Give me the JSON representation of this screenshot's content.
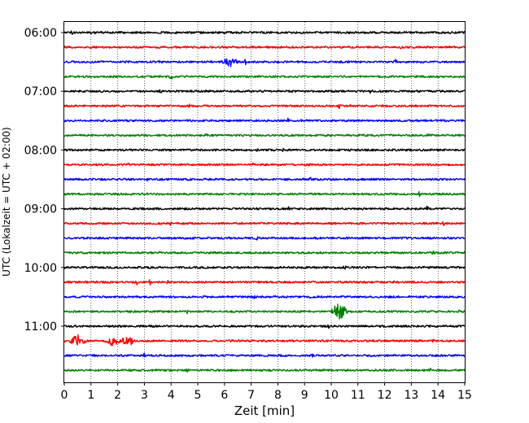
{
  "chart_data": {
    "type": "line",
    "title": "",
    "xlabel": "Zeit  [min]",
    "ylabel": "UTC (Lokalzeit = UTC + 02:00)",
    "xlim": [
      0,
      15
    ],
    "xticks": [
      0,
      1,
      2,
      3,
      4,
      5,
      6,
      7,
      8,
      9,
      10,
      11,
      12,
      13,
      14,
      15
    ],
    "xtick_labels": [
      "0",
      "1",
      "2",
      "3",
      "4",
      "5",
      "6",
      "7",
      "8",
      "9",
      "10",
      "11",
      "12",
      "13",
      "14",
      "15"
    ],
    "ytick_labels": [
      "06:00",
      "07:00",
      "08:00",
      "09:00",
      "10:00",
      "11:00"
    ],
    "ytick_trace_index": [
      0,
      4,
      8,
      12,
      16,
      20
    ],
    "grid": "vertical dotted lines at each minute",
    "trace_colors": [
      "#000000",
      "#ff0000",
      "#0000ff",
      "#008000"
    ],
    "traces": [
      {
        "start": "06:00",
        "events": [
          [
            0.3,
            1.0
          ],
          [
            4.2,
            1.0
          ]
        ]
      },
      {
        "start": "06:15",
        "events": [
          [
            8.3,
            0.5
          ],
          [
            12.6,
            0.6
          ]
        ]
      },
      {
        "start": "06:30",
        "events": [
          [
            6.2,
            1.6
          ],
          [
            6.8,
            1.2
          ],
          [
            12.4,
            0.8
          ]
        ]
      },
      {
        "start": "06:45",
        "events": [
          [
            4.0,
            1.1
          ]
        ]
      },
      {
        "start": "07:00",
        "events": [
          [
            3.6,
            0.5
          ],
          [
            11.5,
            1.1
          ]
        ]
      },
      {
        "start": "07:15",
        "events": [
          [
            4.7,
            0.5
          ],
          [
            10.3,
            0.8
          ],
          [
            10.7,
            0.6
          ]
        ]
      },
      {
        "start": "07:30",
        "events": [
          [
            8.4,
            0.9
          ]
        ]
      },
      {
        "start": "07:45",
        "events": [
          [
            5.3,
            0.5
          ],
          [
            13.6,
            0.8
          ]
        ]
      },
      {
        "start": "08:00",
        "events": [
          [
            7.2,
            0.5
          ],
          [
            8.2,
            0.6
          ],
          [
            11.3,
            0.6
          ]
        ]
      },
      {
        "start": "08:15",
        "events": [
          [
            2.4,
            0.4
          ],
          [
            7.1,
            0.5
          ]
        ]
      },
      {
        "start": "08:30",
        "events": [
          [
            3.1,
            0.5
          ],
          [
            9.2,
            0.7
          ]
        ]
      },
      {
        "start": "08:45",
        "events": [
          [
            3.1,
            0.6
          ],
          [
            13.3,
            0.8
          ]
        ]
      },
      {
        "start": "09:00",
        "events": [
          [
            8.4,
            0.6
          ],
          [
            13.6,
            1.3
          ]
        ]
      },
      {
        "start": "09:15",
        "events": [
          [
            4.0,
            0.7
          ],
          [
            14.2,
            0.5
          ]
        ]
      },
      {
        "start": "09:30",
        "events": [
          [
            7.2,
            0.6
          ]
        ]
      },
      {
        "start": "09:45",
        "events": [
          [
            3.6,
            0.5
          ],
          [
            13.8,
            0.8
          ]
        ]
      },
      {
        "start": "10:00",
        "events": [
          [
            9.1,
            0.5
          ],
          [
            10.5,
            0.6
          ]
        ]
      },
      {
        "start": "10:15",
        "events": [
          [
            2.7,
            1.0
          ],
          [
            3.2,
            1.1
          ],
          [
            3.9,
            0.9
          ],
          [
            12.3,
            0.5
          ]
        ]
      },
      {
        "start": "10:30",
        "events": [
          [
            7.1,
            0.7
          ],
          [
            9.2,
            0.7
          ]
        ]
      },
      {
        "start": "10:45",
        "events": [
          [
            4.6,
            0.6
          ],
          [
            10.3,
            3.4
          ],
          [
            14.8,
            0.7
          ]
        ]
      },
      {
        "start": "11:00",
        "events": [
          [
            9.9,
            0.6
          ]
        ]
      },
      {
        "start": "11:15",
        "events": [
          [
            0.5,
            2.1
          ],
          [
            1.8,
            1.7
          ],
          [
            2.4,
            1.6
          ],
          [
            13.8,
            0.6
          ]
        ]
      },
      {
        "start": "11:30",
        "events": [
          [
            3.0,
            0.9
          ],
          [
            8.0,
            0.8
          ],
          [
            9.3,
            0.8
          ]
        ]
      },
      {
        "start": "11:45",
        "events": [
          [
            4.6,
            0.5
          ],
          [
            13.7,
            0.7
          ]
        ]
      }
    ]
  }
}
